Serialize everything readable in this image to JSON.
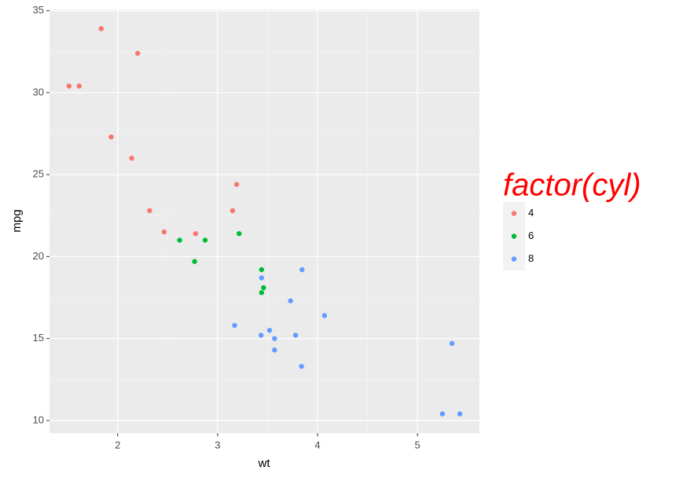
{
  "chart_data": {
    "type": "scatter",
    "x_label": "wt",
    "y_label": "mpg",
    "legend_title": "factor(cyl)",
    "legend": "right",
    "grid": true,
    "xlim": [
      1.318,
      5.62
    ],
    "ylim": [
      9.225,
      35.075
    ],
    "xticks": [
      2,
      3,
      4,
      5
    ],
    "yticks": [
      10,
      15,
      20,
      25,
      30,
      35
    ],
    "series": [
      {
        "name": "4",
        "color": "#F8766D",
        "x": [
          2.32,
          3.19,
          3.15,
          2.2,
          1.615,
          1.835,
          2.465,
          1.935,
          2.14,
          1.513,
          2.78
        ],
        "values": [
          22.8,
          24.4,
          22.8,
          32.4,
          30.4,
          33.9,
          21.5,
          27.3,
          26.0,
          30.4,
          21.4
        ]
      },
      {
        "name": "6",
        "color": "#00BA38",
        "x": [
          2.62,
          2.875,
          3.215,
          3.46,
          3.44,
          3.44,
          2.77
        ],
        "values": [
          21.0,
          21.0,
          21.4,
          18.1,
          19.2,
          17.8,
          19.7
        ]
      },
      {
        "name": "8",
        "color": "#619CFF",
        "x": [
          3.44,
          3.57,
          4.07,
          3.73,
          3.78,
          5.25,
          5.424,
          5.345,
          3.52,
          3.435,
          3.84,
          3.845,
          3.17,
          3.57
        ],
        "values": [
          18.7,
          14.3,
          16.4,
          17.3,
          15.2,
          10.4,
          10.4,
          14.7,
          15.5,
          15.2,
          13.3,
          19.2,
          15.8,
          15.0
        ]
      }
    ]
  }
}
